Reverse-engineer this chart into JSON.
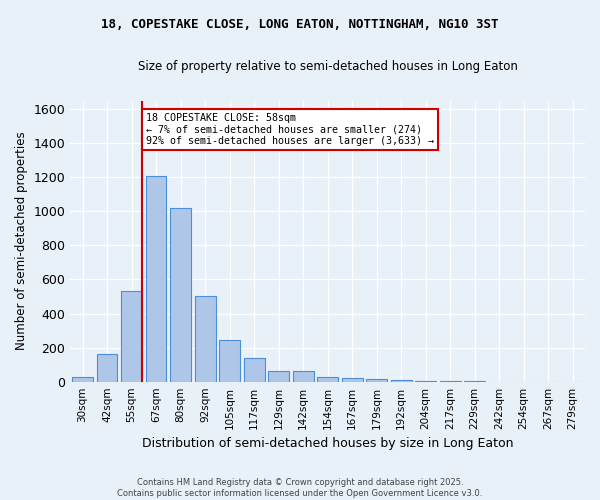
{
  "title1": "18, COPESTAKE CLOSE, LONG EATON, NOTTINGHAM, NG10 3ST",
  "title2": "Size of property relative to semi-detached houses in Long Eaton",
  "xlabel": "Distribution of semi-detached houses by size in Long Eaton",
  "ylabel": "Number of semi-detached properties",
  "categories": [
    "30sqm",
    "42sqm",
    "55sqm",
    "67sqm",
    "80sqm",
    "92sqm",
    "105sqm",
    "117sqm",
    "129sqm",
    "142sqm",
    "154sqm",
    "167sqm",
    "179sqm",
    "192sqm",
    "204sqm",
    "217sqm",
    "229sqm",
    "242sqm",
    "254sqm",
    "267sqm",
    "279sqm"
  ],
  "values": [
    30,
    165,
    530,
    1210,
    1020,
    505,
    245,
    140,
    65,
    60,
    28,
    20,
    15,
    10,
    5,
    3,
    2,
    1,
    1,
    1,
    1
  ],
  "bar_color": "#aec6e8",
  "bar_edge_color": "#4a90d9",
  "annotation_text1": "18 COPESTAKE CLOSE: 58sqm",
  "annotation_text2": "← 7% of semi-detached houses are smaller (274)",
  "annotation_text3": "92% of semi-detached houses are larger (3,633) →",
  "vline_color": "#cc0000",
  "ylim": [
    0,
    1650
  ],
  "yticks": [
    0,
    200,
    400,
    600,
    800,
    1000,
    1200,
    1400,
    1600
  ],
  "footnote1": "Contains HM Land Registry data © Crown copyright and database right 2025.",
  "footnote2": "Contains public sector information licensed under the Open Government Licence v3.0.",
  "bg_color": "#e8f0f8",
  "grid_color": "#ffffff",
  "annotation_box_color": "#ffffff",
  "annotation_box_edge": "#cc0000",
  "vline_index": 2.42
}
